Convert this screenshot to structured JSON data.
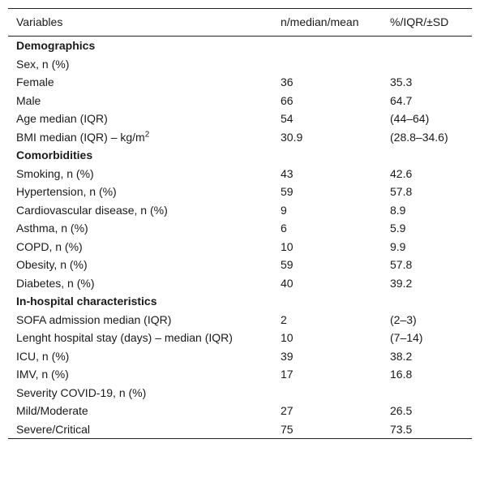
{
  "table": {
    "header": [
      "Variables",
      "n/median/mean",
      "%/IQR/±SD"
    ],
    "rows": [
      {
        "section": "Demographics"
      },
      {
        "label": "Sex, n (%)"
      },
      {
        "label": "Female",
        "n": 36,
        "pct": 35.3
      },
      {
        "label": "Male",
        "n": 66,
        "pct": 64.7
      },
      {
        "label": "Age median (IQR)",
        "n": 54,
        "pct": "(44–64)"
      },
      {
        "label": {
          "text": "BMI median (IQR) – kg/m",
          "sup": "2"
        },
        "n": 30.9,
        "pct": "(28.8–34.6)"
      },
      {
        "section": "Comorbidities"
      },
      {
        "label": "Smoking, n (%)",
        "n": 43,
        "pct": 42.6
      },
      {
        "label": "Hypertension, n (%)",
        "n": 59,
        "pct": 57.8
      },
      {
        "label": "Cardiovascular disease, n (%)",
        "n": 9,
        "pct": 8.9
      },
      {
        "label": "Asthma, n (%)",
        "n": 6,
        "pct": 5.9
      },
      {
        "label": "COPD, n (%)",
        "n": 10,
        "pct": 9.9
      },
      {
        "label": "Obesity, n (%)",
        "n": 59,
        "pct": 57.8
      },
      {
        "label": "Diabetes, n (%)",
        "n": 40,
        "pct": 39.2
      },
      {
        "section": "In-hospital characteristics"
      },
      {
        "label": "SOFA admission median (IQR)",
        "n": 2,
        "pct": "(2–3)"
      },
      {
        "label": "Lenght hospital stay (days) – median (IQR)",
        "n": 10,
        "pct": "(7–14)"
      },
      {
        "label": "ICU, n (%)",
        "n": 39,
        "pct": 38.2
      },
      {
        "label": "IMV, n (%)",
        "n": 17,
        "pct": 16.8
      },
      {
        "label": "Severity COVID-19, n (%)"
      },
      {
        "label": "Mild/Moderate",
        "n": 27,
        "pct": 26.5
      },
      {
        "label": "Severe/Critical",
        "n": 75,
        "pct": 73.5
      }
    ]
  }
}
